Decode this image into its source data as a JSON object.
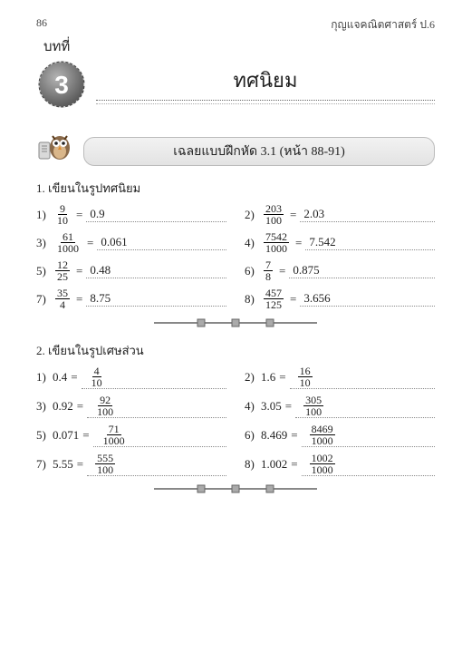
{
  "page_number": "86",
  "book_title": "กุญแจคณิตศาสตร์ ป.6",
  "chapter_label": "บทที่",
  "chapter_number": "3",
  "chapter_title": "ทศนิยม",
  "exercise_banner": "เฉลยแบบฝึกหัด 3.1 (หน้า 88-91)",
  "section1_title": "1.  เขียนในรูปทศนิยม",
  "section2_title": "2.  เขียนในรูปเศษส่วน",
  "s1": [
    {
      "i": "1)",
      "qn": "9",
      "qd": "10",
      "a": "0.9"
    },
    {
      "i": "2)",
      "qn": "203",
      "qd": "100",
      "a": "2.03"
    },
    {
      "i": "3)",
      "qn": "61",
      "qd": "1000",
      "a": "0.061"
    },
    {
      "i": "4)",
      "qn": "7542",
      "qd": "1000",
      "a": "7.542"
    },
    {
      "i": "5)",
      "qn": "12",
      "qd": "25",
      "a": "0.48"
    },
    {
      "i": "6)",
      "qn": "7",
      "qd": "8",
      "a": "0.875"
    },
    {
      "i": "7)",
      "qn": "35",
      "qd": "4",
      "a": "8.75"
    },
    {
      "i": "8)",
      "qn": "457",
      "qd": "125",
      "a": "3.656"
    }
  ],
  "s2": [
    {
      "i": "1)",
      "q": "0.4",
      "an": "4",
      "ad": "10"
    },
    {
      "i": "2)",
      "q": "1.6",
      "an": "16",
      "ad": "10"
    },
    {
      "i": "3)",
      "q": "0.92",
      "an": "92",
      "ad": "100"
    },
    {
      "i": "4)",
      "q": "3.05",
      "an": "305",
      "ad": "100"
    },
    {
      "i": "5)",
      "q": "0.071",
      "an": "71",
      "ad": "1000"
    },
    {
      "i": "6)",
      "q": "8.469",
      "an": "8469",
      "ad": "1000"
    },
    {
      "i": "7)",
      "q": "5.55",
      "an": "555",
      "ad": "100"
    },
    {
      "i": "8)",
      "q": "1.002",
      "an": "1002",
      "ad": "1000"
    }
  ],
  "colors": {
    "badge_a": "#9b9b9b",
    "badge_b": "#606060",
    "stitch": "#e6e6e6",
    "div_line": "#888888",
    "div_box_a": "#bfbfbf",
    "div_box_b": "#8a8a8a"
  }
}
